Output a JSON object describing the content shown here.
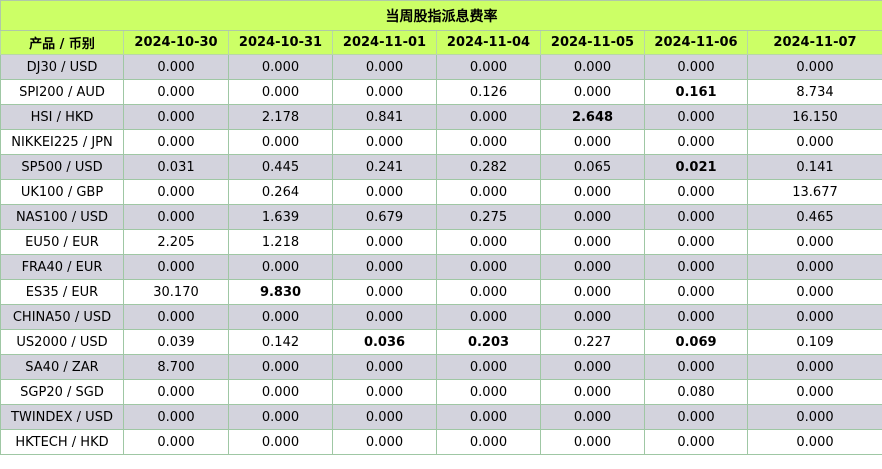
{
  "title": "当周股指派息费率",
  "headers": [
    "产品 / 币别",
    "2024-10-30",
    "2024-10-31",
    "2024-11-01",
    "2024-11-04",
    "2024-11-05",
    "2024-11-06",
    "2024-11-07"
  ],
  "rows": [
    {
      "product": "DJ30 / USD",
      "values": [
        "0.000",
        "0.000",
        "0.000",
        "0.000",
        "0.000",
        "0.000",
        "0.000"
      ],
      "bold": []
    },
    {
      "product": "SPI200 / AUD",
      "values": [
        "0.000",
        "0.000",
        "0.000",
        "0.126",
        "0.000",
        "0.161",
        "8.734"
      ],
      "bold": [
        5
      ]
    },
    {
      "product": "HSI / HKD",
      "values": [
        "0.000",
        "2.178",
        "0.841",
        "0.000",
        "2.648",
        "0.000",
        "16.150"
      ],
      "bold": [
        4
      ]
    },
    {
      "product": "NIKKEI225 / JPN",
      "values": [
        "0.000",
        "0.000",
        "0.000",
        "0.000",
        "0.000",
        "0.000",
        "0.000"
      ],
      "bold": []
    },
    {
      "product": "SP500 / USD",
      "values": [
        "0.031",
        "0.445",
        "0.241",
        "0.282",
        "0.065",
        "0.021",
        "0.141"
      ],
      "bold": [
        5
      ]
    },
    {
      "product": "UK100 / GBP",
      "values": [
        "0.000",
        "0.264",
        "0.000",
        "0.000",
        "0.000",
        "0.000",
        "13.677"
      ],
      "bold": []
    },
    {
      "product": "NAS100 / USD",
      "values": [
        "0.000",
        "1.639",
        "0.679",
        "0.275",
        "0.000",
        "0.000",
        "0.465"
      ],
      "bold": []
    },
    {
      "product": "EU50 / EUR",
      "values": [
        "2.205",
        "1.218",
        "0.000",
        "0.000",
        "0.000",
        "0.000",
        "0.000"
      ],
      "bold": []
    },
    {
      "product": "FRA40 / EUR",
      "values": [
        "0.000",
        "0.000",
        "0.000",
        "0.000",
        "0.000",
        "0.000",
        "0.000"
      ],
      "bold": []
    },
    {
      "product": "ES35 / EUR",
      "values": [
        "30.170",
        "9.830",
        "0.000",
        "0.000",
        "0.000",
        "0.000",
        "0.000"
      ],
      "bold": [
        1
      ]
    },
    {
      "product": "CHINA50 / USD",
      "values": [
        "0.000",
        "0.000",
        "0.000",
        "0.000",
        "0.000",
        "0.000",
        "0.000"
      ],
      "bold": []
    },
    {
      "product": "US2000 / USD",
      "values": [
        "0.039",
        "0.142",
        "0.036",
        "0.203",
        "0.227",
        "0.069",
        "0.109"
      ],
      "bold": [
        2,
        3,
        5
      ]
    },
    {
      "product": "SA40 / ZAR",
      "values": [
        "8.700",
        "0.000",
        "0.000",
        "0.000",
        "0.000",
        "0.000",
        "0.000"
      ],
      "bold": []
    },
    {
      "product": "SGP20 / SGD",
      "values": [
        "0.000",
        "0.000",
        "0.000",
        "0.000",
        "0.000",
        "0.080",
        "0.000"
      ],
      "bold": []
    },
    {
      "product": "TWINDEX / USD",
      "values": [
        "0.000",
        "0.000",
        "0.000",
        "0.000",
        "0.000",
        "0.000",
        "0.000"
      ],
      "bold": []
    },
    {
      "product": "HKTECH / HKD",
      "values": [
        "0.000",
        "0.000",
        "0.000",
        "0.000",
        "0.000",
        "0.000",
        "0.000"
      ],
      "bold": []
    }
  ]
}
